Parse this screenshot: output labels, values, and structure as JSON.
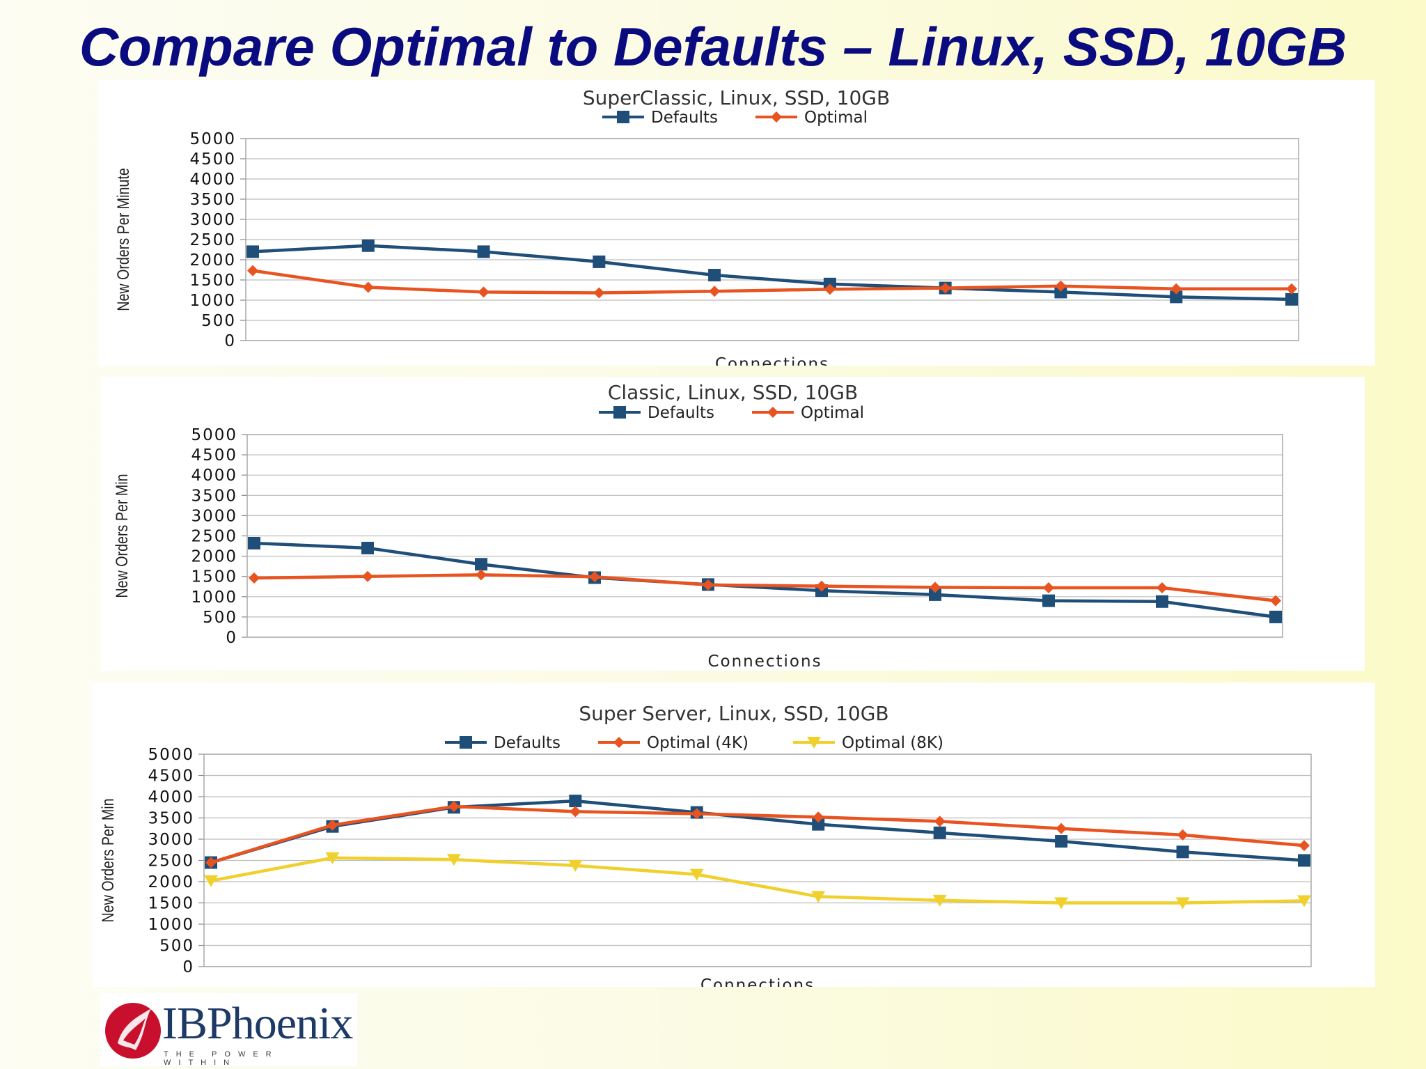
{
  "slide": {
    "title": "Compare Optimal to Defaults – Linux, SSD, 10GB",
    "logo": {
      "name": "IBPhoenix",
      "tagline": "THE POWER WITHIN"
    }
  },
  "chart_data": [
    {
      "type": "line",
      "title": "SuperClassic, Linux, SSD, 10GB",
      "xlabel": "Connections",
      "ylabel": "New Orders Per Minute",
      "ylim": [
        0,
        5000
      ],
      "yticks": [
        0,
        500,
        1000,
        1500,
        2000,
        2500,
        3000,
        3500,
        4000,
        4500,
        5000
      ],
      "grid": true,
      "legend_position": "top",
      "series": [
        {
          "name": "Defaults",
          "color": "#1f4e79",
          "marker": "square",
          "values": [
            2200,
            2350,
            2200,
            1950,
            1620,
            1400,
            1300,
            1200,
            1080,
            1020
          ]
        },
        {
          "name": "Optimal",
          "color": "#e8531f",
          "marker": "diamond",
          "values": [
            1730,
            1320,
            1200,
            1180,
            1220,
            1270,
            1300,
            1350,
            1280,
            1280
          ]
        }
      ]
    },
    {
      "type": "line",
      "title": "Classic, Linux, SSD, 10GB",
      "xlabel": "Connections",
      "ylabel": "New Orders Per Min",
      "ylim": [
        0,
        5000
      ],
      "yticks": [
        0,
        500,
        1000,
        1500,
        2000,
        2500,
        3000,
        3500,
        4000,
        4500,
        5000
      ],
      "grid": true,
      "legend_position": "top",
      "series": [
        {
          "name": "Defaults",
          "color": "#1f4e79",
          "marker": "square",
          "values": [
            2320,
            2200,
            1800,
            1470,
            1300,
            1150,
            1050,
            900,
            880,
            500
          ]
        },
        {
          "name": "Optimal",
          "color": "#e8531f",
          "marker": "diamond",
          "values": [
            1460,
            1500,
            1540,
            1490,
            1290,
            1260,
            1230,
            1220,
            1220,
            900
          ]
        }
      ]
    },
    {
      "type": "line",
      "title": "Super Server, Linux, SSD, 10GB",
      "xlabel": "Connections",
      "ylabel": "New Orders Per Min",
      "ylim": [
        0,
        5000
      ],
      "yticks": [
        0,
        500,
        1000,
        1500,
        2000,
        2500,
        3000,
        3500,
        4000,
        4500,
        5000
      ],
      "grid": true,
      "legend_position": "top",
      "series": [
        {
          "name": "Defaults",
          "color": "#1f4e79",
          "marker": "square",
          "values": [
            2450,
            3300,
            3750,
            3900,
            3630,
            3350,
            3150,
            2950,
            2700,
            2500
          ]
        },
        {
          "name": "Optimal (4K)",
          "color": "#e8531f",
          "marker": "diamond",
          "values": [
            2450,
            3330,
            3770,
            3650,
            3600,
            3520,
            3420,
            3250,
            3100,
            2850
          ]
        },
        {
          "name": "Optimal (8K)",
          "color": "#f0d02c",
          "marker": "triangle-down",
          "values": [
            2020,
            2560,
            2520,
            2380,
            2170,
            1650,
            1560,
            1500,
            1500,
            1550
          ]
        }
      ]
    }
  ]
}
